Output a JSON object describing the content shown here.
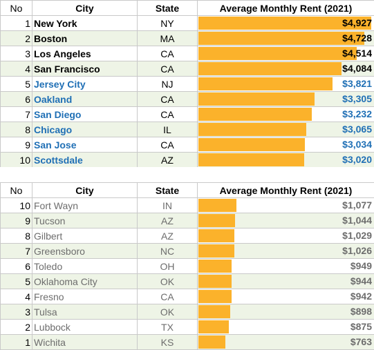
{
  "colors": {
    "bar": "#fbb22b",
    "top_black": "#000000",
    "top_blue": "#1f6fb5",
    "bottom_gray": "#6d6d6d",
    "stripe": "#eef4e6"
  },
  "headers": {
    "no": "No",
    "city": "City",
    "state": "State",
    "rent": "Average Monthly Rent (2021)"
  },
  "top": [
    {
      "no": "1",
      "city": "New York",
      "state": "NY",
      "rent": "$4,927",
      "value": 4927,
      "style": "black"
    },
    {
      "no": "2",
      "city": "Boston",
      "state": "MA",
      "rent": "$4,728",
      "value": 4728,
      "style": "black"
    },
    {
      "no": "3",
      "city": " Los Angeles",
      "state": "CA",
      "rent": "$4,514",
      "value": 4514,
      "style": "black"
    },
    {
      "no": "4",
      "city": " San Francisco",
      "state": "CA",
      "rent": "$4,084",
      "value": 4084,
      "style": "black"
    },
    {
      "no": "5",
      "city": "Jersey City",
      "state": "NJ",
      "rent": "$3,821",
      "value": 3821,
      "style": "blue"
    },
    {
      "no": "6",
      "city": "Oakland",
      "state": "CA",
      "rent": "$3,305",
      "value": 3305,
      "style": "blue"
    },
    {
      "no": "7",
      "city": "San Diego",
      "state": "CA",
      "rent": "$3,232",
      "value": 3232,
      "style": "blue"
    },
    {
      "no": "8",
      "city": "Chicago",
      "state": "IL",
      "rent": "$3,065",
      "value": 3065,
      "style": "blue"
    },
    {
      "no": "9",
      "city": "San Jose",
      "state": "CA",
      "rent": "$3,034",
      "value": 3034,
      "style": "blue"
    },
    {
      "no": "10",
      "city": "Scottsdale",
      "state": "AZ",
      "rent": "$3,020",
      "value": 3020,
      "style": "blue"
    }
  ],
  "bottom": [
    {
      "no": "10",
      "city": "Fort Wayn",
      "state": "IN",
      "rent": "$1,077",
      "value": 1077
    },
    {
      "no": "9",
      "city": "Tucson",
      "state": "AZ",
      "rent": "$1,044",
      "value": 1044
    },
    {
      "no": "8",
      "city": " Gilbert",
      "state": "AZ",
      "rent": "$1,029",
      "value": 1029
    },
    {
      "no": "7",
      "city": "Greensboro",
      "state": "NC",
      "rent": "$1,026",
      "value": 1026
    },
    {
      "no": "6",
      "city": "Toledo",
      "state": "OH",
      "rent": "$949",
      "value": 949
    },
    {
      "no": "5",
      "city": "Oklahoma City",
      "state": "OK",
      "rent": "$944",
      "value": 944
    },
    {
      "no": "4",
      "city": "Fresno",
      "state": "CA",
      "rent": "$942",
      "value": 942
    },
    {
      "no": "3",
      "city": "Tulsa",
      "state": "OK",
      "rent": "$898",
      "value": 898
    },
    {
      "no": "2",
      "city": "Lubbock",
      "state": "TX",
      "rent": "$875",
      "value": 875
    },
    {
      "no": "1",
      "city": "Wichita",
      "state": "KS",
      "rent": "$763",
      "value": 763
    }
  ]
}
